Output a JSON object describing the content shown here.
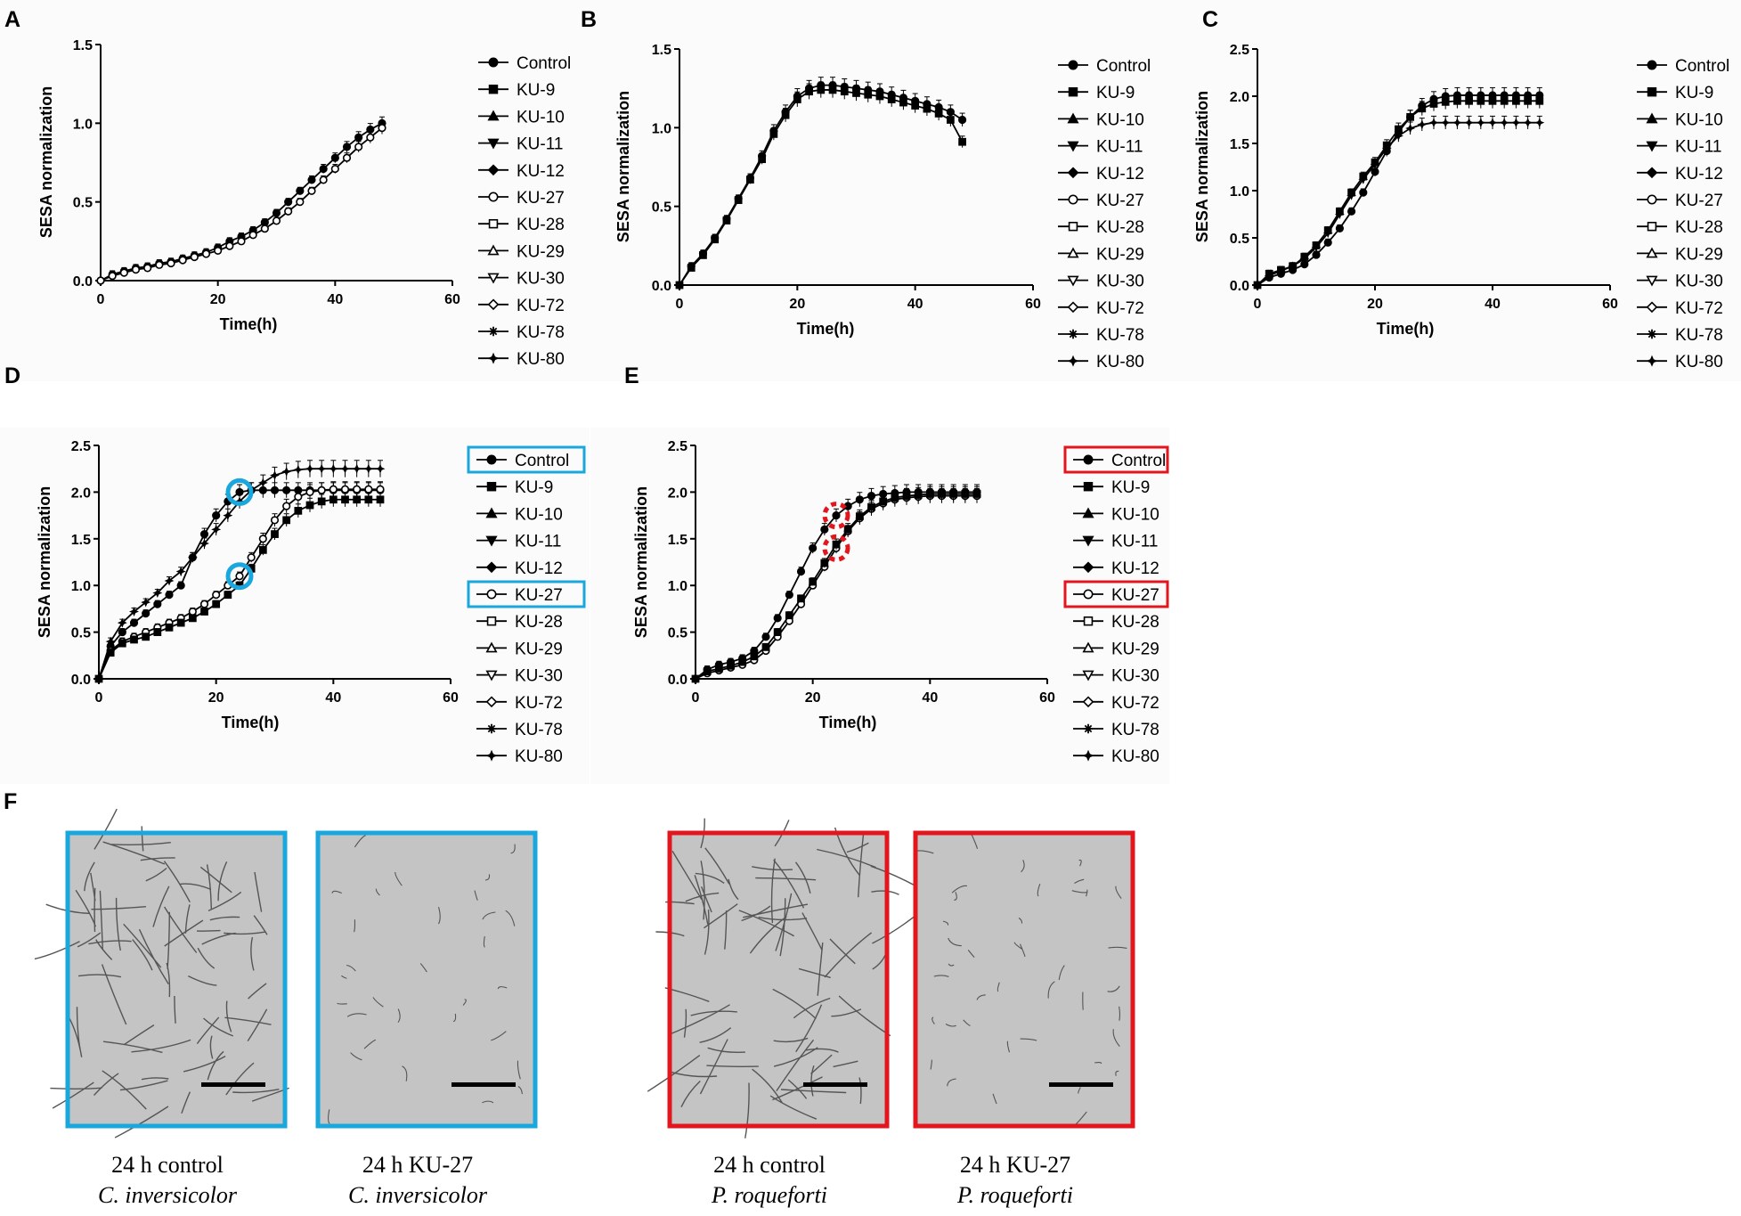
{
  "figure_label_F": "F",
  "legend_entries": [
    "Control",
    "KU-9",
    "KU-10",
    "KU-11",
    "KU-12",
    "KU-27",
    "KU-28",
    "KU-29",
    "KU-30",
    "KU-72",
    "KU-78",
    "KU-80"
  ],
  "colors": {
    "ink": "#000000",
    "blue": "#1aa7dd",
    "red": "#e3161d",
    "panel_bg": "#fbfbfb"
  },
  "chart_data": [
    {
      "panel": "A",
      "type": "line",
      "xlabel": "Time(h)",
      "ylabel": "SESA normalization",
      "xlim": [
        0,
        60
      ],
      "ylim": [
        0,
        1.5
      ],
      "xticks": [
        "0",
        "20",
        "40",
        "60"
      ],
      "yticks": [
        "0.0",
        "0.5",
        "1.0",
        "1.5"
      ],
      "x": [
        0,
        2,
        4,
        6,
        8,
        10,
        12,
        14,
        16,
        18,
        20,
        22,
        24,
        26,
        28,
        30,
        32,
        34,
        36,
        38,
        40,
        42,
        44,
        46,
        48
      ],
      "series": [
        {
          "name": "Control",
          "values": [
            0,
            0.04,
            0.06,
            0.08,
            0.09,
            0.11,
            0.12,
            0.14,
            0.16,
            0.18,
            0.21,
            0.25,
            0.28,
            0.32,
            0.37,
            0.43,
            0.5,
            0.57,
            0.64,
            0.71,
            0.78,
            0.85,
            0.91,
            0.96,
            1.0
          ]
        },
        {
          "name": "KU-27",
          "values": [
            0,
            0.03,
            0.05,
            0.07,
            0.08,
            0.1,
            0.11,
            0.13,
            0.15,
            0.17,
            0.19,
            0.22,
            0.25,
            0.29,
            0.33,
            0.38,
            0.44,
            0.5,
            0.57,
            0.64,
            0.71,
            0.78,
            0.85,
            0.91,
            0.97
          ]
        }
      ]
    },
    {
      "panel": "B",
      "type": "line",
      "xlabel": "Time(h)",
      "ylabel": "SESA normalization",
      "xlim": [
        0,
        60
      ],
      "ylim": [
        0,
        1.5
      ],
      "xticks": [
        "0",
        "20",
        "40",
        "60"
      ],
      "yticks": [
        "0.0",
        "0.5",
        "1.0",
        "1.5"
      ],
      "x": [
        0,
        2,
        4,
        6,
        8,
        10,
        12,
        14,
        16,
        18,
        20,
        22,
        24,
        26,
        28,
        30,
        32,
        34,
        36,
        38,
        40,
        42,
        44,
        46,
        48
      ],
      "series": [
        {
          "name": "Control",
          "values": [
            0,
            0.12,
            0.2,
            0.3,
            0.42,
            0.55,
            0.68,
            0.82,
            0.98,
            1.1,
            1.2,
            1.25,
            1.27,
            1.27,
            1.26,
            1.25,
            1.24,
            1.23,
            1.21,
            1.19,
            1.17,
            1.15,
            1.13,
            1.1,
            1.05
          ]
        },
        {
          "name": "KU-9",
          "values": [
            0,
            0.11,
            0.19,
            0.29,
            0.41,
            0.54,
            0.67,
            0.8,
            0.96,
            1.08,
            1.18,
            1.23,
            1.24,
            1.24,
            1.23,
            1.22,
            1.21,
            1.2,
            1.18,
            1.16,
            1.14,
            1.12,
            1.09,
            1.05,
            0.91
          ]
        }
      ]
    },
    {
      "panel": "C",
      "type": "line",
      "xlabel": "Time(h)",
      "ylabel": "SESA normalization",
      "xlim": [
        0,
        60
      ],
      "ylim": [
        0,
        2.5
      ],
      "xticks": [
        "0",
        "20",
        "40",
        "60"
      ],
      "yticks": [
        "0.0",
        "0.5",
        "1.0",
        "1.5",
        "2.0",
        "2.5"
      ],
      "x": [
        0,
        2,
        4,
        6,
        8,
        10,
        12,
        14,
        16,
        18,
        20,
        22,
        24,
        26,
        28,
        30,
        32,
        34,
        36,
        38,
        40,
        42,
        44,
        46,
        48
      ],
      "series": [
        {
          "name": "Control",
          "values": [
            0,
            0.08,
            0.12,
            0.16,
            0.22,
            0.32,
            0.45,
            0.6,
            0.78,
            0.98,
            1.2,
            1.42,
            1.62,
            1.78,
            1.9,
            1.97,
            2.0,
            2.01,
            2.01,
            2.01,
            2.01,
            2.01,
            2.01,
            2.01,
            2.01
          ]
        },
        {
          "name": "KU-9",
          "values": [
            0,
            0.12,
            0.16,
            0.2,
            0.3,
            0.42,
            0.58,
            0.78,
            0.98,
            1.15,
            1.3,
            1.48,
            1.65,
            1.78,
            1.87,
            1.92,
            1.94,
            1.95,
            1.95,
            1.95,
            1.95,
            1.95,
            1.95,
            1.95,
            1.95
          ]
        },
        {
          "name": "KU-80",
          "values": [
            0,
            0.1,
            0.15,
            0.2,
            0.28,
            0.4,
            0.55,
            0.75,
            0.95,
            1.12,
            1.28,
            1.45,
            1.58,
            1.66,
            1.7,
            1.72,
            1.72,
            1.72,
            1.72,
            1.72,
            1.72,
            1.72,
            1.72,
            1.72,
            1.72
          ]
        }
      ]
    },
    {
      "panel": "D",
      "type": "line",
      "xlabel": "Time(h)",
      "ylabel": "SESA normalization",
      "xlim": [
        0,
        60
      ],
      "ylim": [
        0,
        2.5
      ],
      "xticks": [
        "0",
        "20",
        "40",
        "60"
      ],
      "yticks": [
        "0.0",
        "0.5",
        "1.0",
        "1.5",
        "2.0",
        "2.5"
      ],
      "x": [
        0,
        2,
        4,
        6,
        8,
        10,
        12,
        14,
        16,
        18,
        20,
        22,
        24,
        26,
        28,
        30,
        32,
        34,
        36,
        38,
        40,
        42,
        44,
        46,
        48
      ],
      "series": [
        {
          "name": "Control",
          "values": [
            0,
            0.35,
            0.5,
            0.6,
            0.7,
            0.8,
            0.9,
            1.0,
            1.3,
            1.55,
            1.75,
            1.9,
            2.0,
            2.02,
            2.02,
            2.02,
            2.02,
            2.02,
            2.02,
            2.02,
            2.02,
            2.02,
            2.02,
            2.02,
            2.02
          ]
        },
        {
          "name": "KU-27",
          "values": [
            0,
            0.3,
            0.4,
            0.45,
            0.5,
            0.55,
            0.6,
            0.65,
            0.72,
            0.8,
            0.9,
            1.0,
            1.1,
            1.3,
            1.5,
            1.7,
            1.85,
            1.95,
            2.0,
            2.02,
            2.03,
            2.03,
            2.03,
            2.03,
            2.03
          ]
        },
        {
          "name": "KU-80",
          "values": [
            0,
            0.4,
            0.6,
            0.72,
            0.82,
            0.92,
            1.05,
            1.15,
            1.3,
            1.45,
            1.6,
            1.75,
            1.9,
            2.02,
            2.1,
            2.18,
            2.22,
            2.24,
            2.25,
            2.25,
            2.25,
            2.25,
            2.25,
            2.25,
            2.25
          ]
        },
        {
          "name": "KU-9",
          "values": [
            0,
            0.28,
            0.38,
            0.42,
            0.45,
            0.5,
            0.55,
            0.6,
            0.65,
            0.72,
            0.8,
            0.9,
            1.0,
            1.18,
            1.38,
            1.55,
            1.7,
            1.8,
            1.86,
            1.9,
            1.92,
            1.92,
            1.92,
            1.92,
            1.92
          ]
        }
      ],
      "highlighted": [
        "Control",
        "KU-27"
      ]
    },
    {
      "panel": "E",
      "type": "line",
      "xlabel": "Time(h)",
      "ylabel": "SESA normalization",
      "xlim": [
        0,
        60
      ],
      "ylim": [
        0,
        2.5
      ],
      "xticks": [
        "0",
        "20",
        "40",
        "60"
      ],
      "yticks": [
        "0.0",
        "0.5",
        "1.0",
        "1.5",
        "2.0",
        "2.5"
      ],
      "x": [
        0,
        2,
        4,
        6,
        8,
        10,
        12,
        14,
        16,
        18,
        20,
        22,
        24,
        26,
        28,
        30,
        32,
        34,
        36,
        38,
        40,
        42,
        44,
        46,
        48
      ],
      "series": [
        {
          "name": "Control",
          "values": [
            0,
            0.1,
            0.15,
            0.18,
            0.22,
            0.3,
            0.45,
            0.65,
            0.9,
            1.15,
            1.4,
            1.6,
            1.75,
            1.85,
            1.92,
            1.96,
            1.98,
            1.99,
            2.0,
            2.0,
            2.0,
            2.0,
            2.0,
            2.0,
            2.0
          ]
        },
        {
          "name": "KU-27",
          "values": [
            0,
            0.06,
            0.09,
            0.12,
            0.15,
            0.2,
            0.3,
            0.45,
            0.62,
            0.8,
            1.0,
            1.2,
            1.4,
            1.58,
            1.72,
            1.82,
            1.88,
            1.92,
            1.94,
            1.95,
            1.96,
            1.96,
            1.96,
            1.96,
            1.96
          ]
        },
        {
          "name": "KU-9",
          "values": [
            0,
            0.08,
            0.11,
            0.14,
            0.18,
            0.24,
            0.34,
            0.5,
            0.68,
            0.86,
            1.04,
            1.24,
            1.44,
            1.6,
            1.74,
            1.84,
            1.9,
            1.94,
            1.96,
            1.97,
            1.98,
            1.98,
            1.98,
            1.98,
            1.98
          ]
        }
      ],
      "highlighted": [
        "Control",
        "KU-27"
      ]
    }
  ],
  "micrographs": [
    {
      "id": "ci-control",
      "line1": "24 h control",
      "line2": "C. inversicolor",
      "frame": "blue",
      "density": "dense"
    },
    {
      "id": "ci-ku27",
      "line1": "24 h KU-27",
      "line2": "C. inversicolor",
      "frame": "blue",
      "density": "sparse"
    },
    {
      "id": "pr-control",
      "line1": "24 h control",
      "line2": "P. roqueforti",
      "frame": "red",
      "density": "dense"
    },
    {
      "id": "pr-ku27",
      "line1": "24 h KU-27",
      "line2": "P. roqueforti",
      "frame": "red",
      "density": "medium"
    }
  ]
}
